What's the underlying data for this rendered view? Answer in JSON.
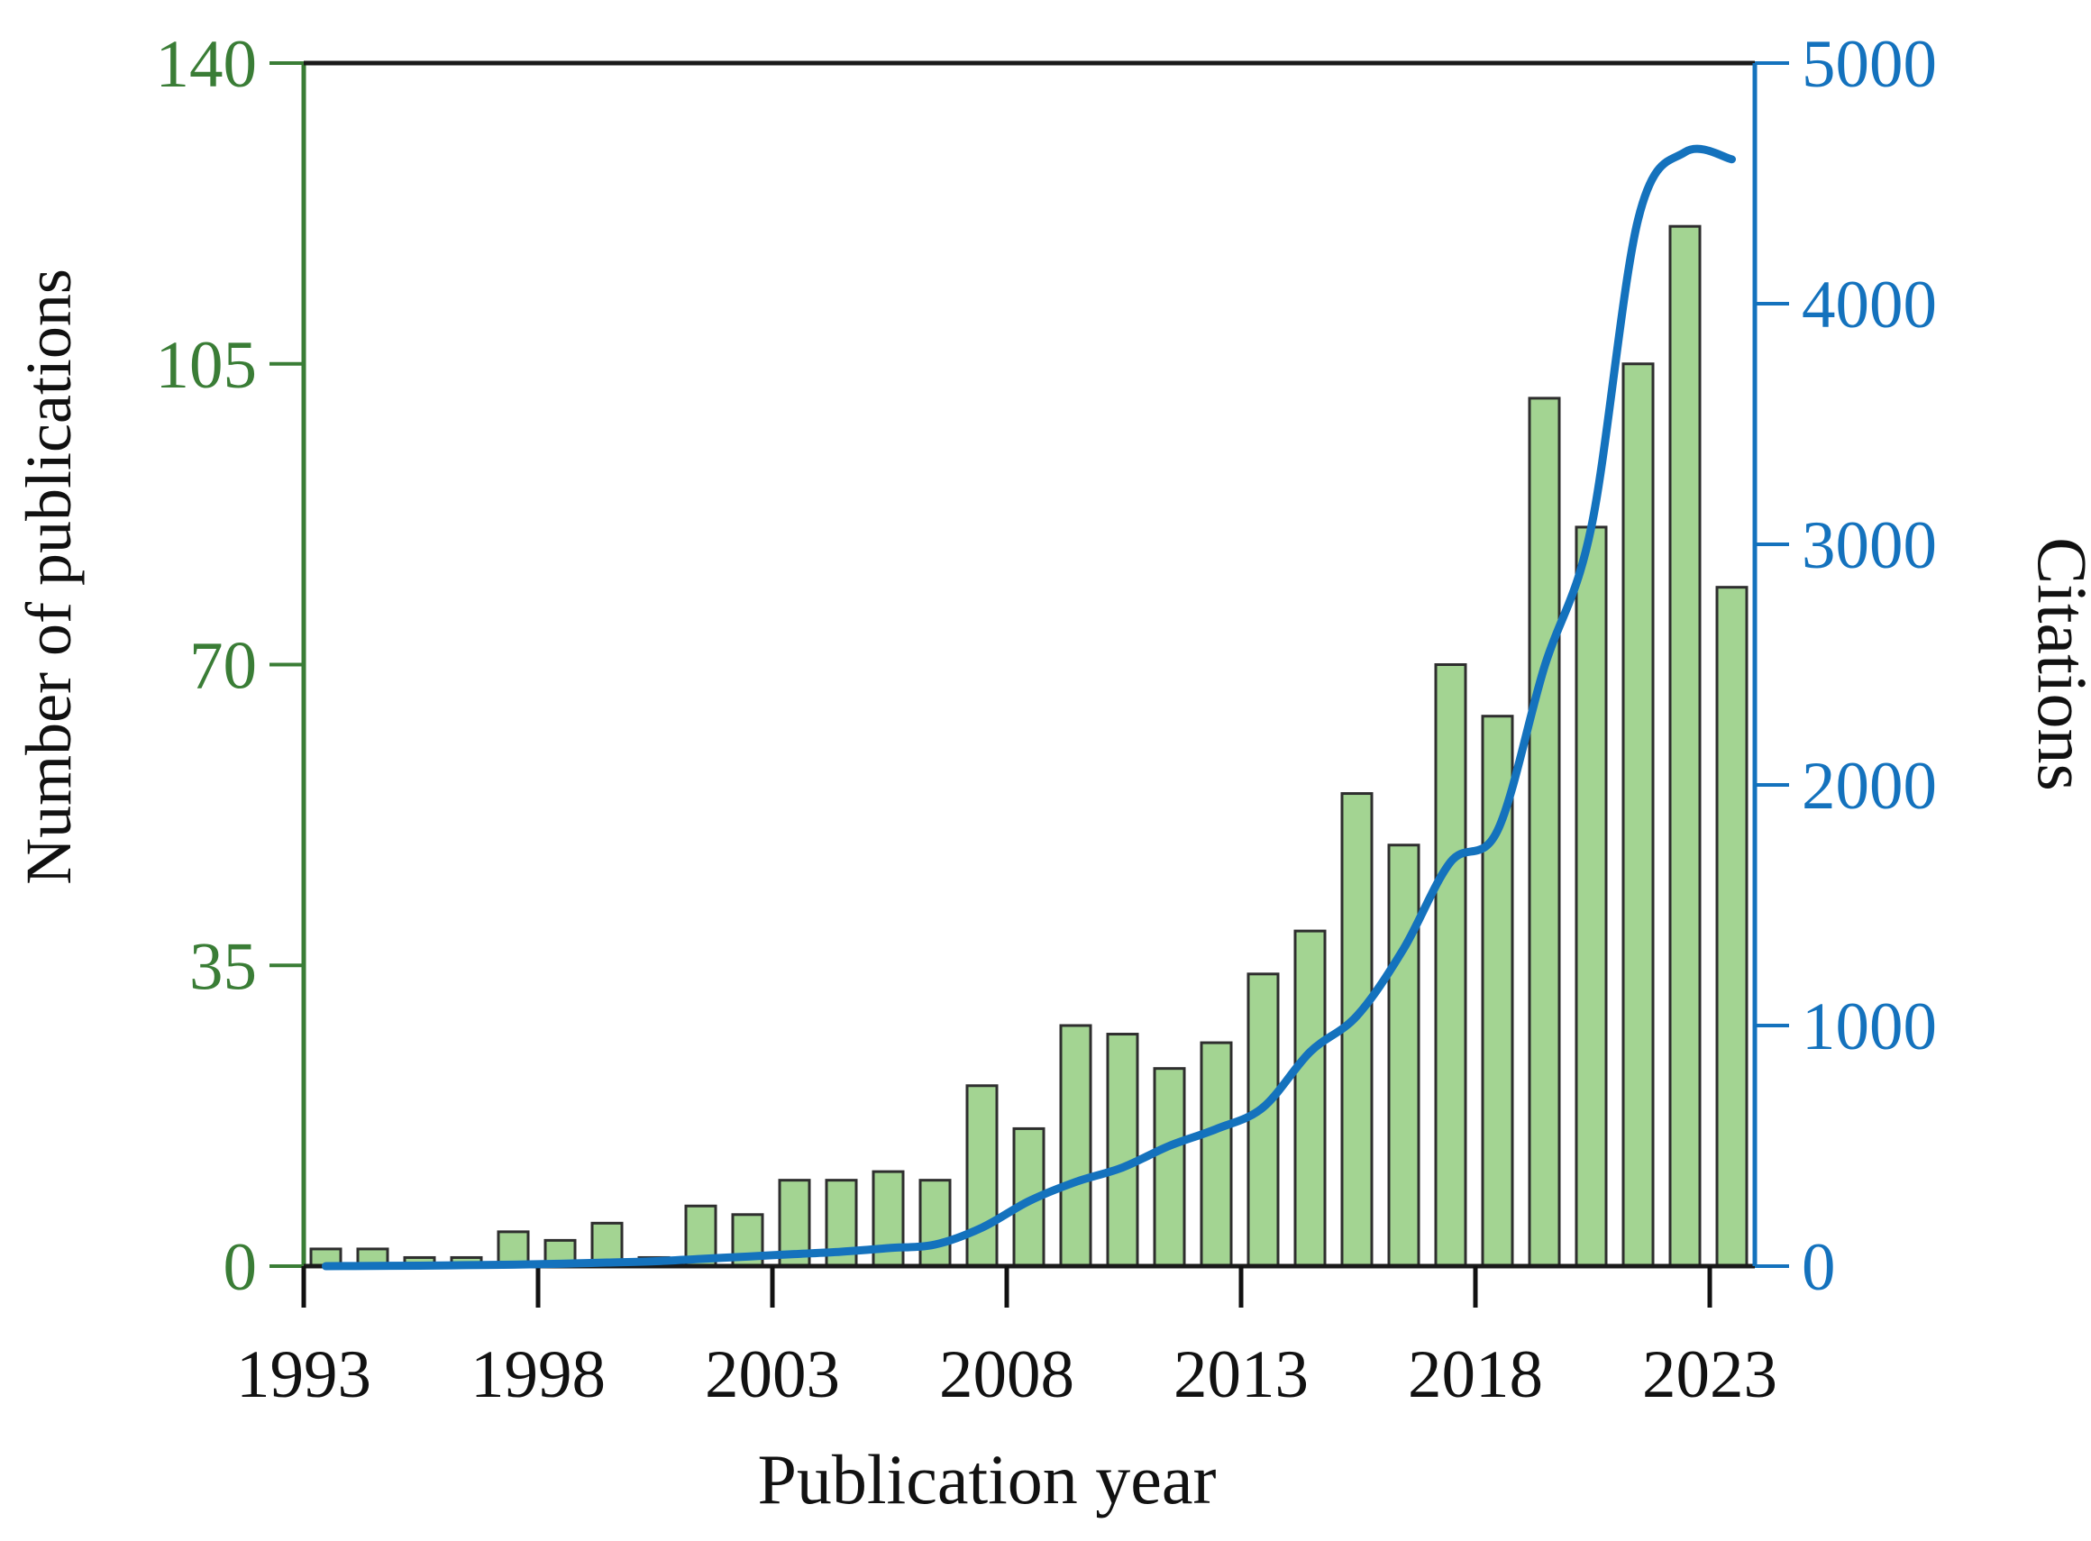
{
  "chart_data": {
    "type": "bar+line",
    "title": "",
    "categories": [
      1993,
      1994,
      1995,
      1996,
      1997,
      1998,
      1999,
      2000,
      2001,
      2002,
      2003,
      2004,
      2005,
      2006,
      2007,
      2008,
      2009,
      2010,
      2011,
      2012,
      2013,
      2014,
      2015,
      2016,
      2017,
      2018,
      2019,
      2020,
      2021,
      2022,
      2023
    ],
    "series": [
      {
        "name": "Number of publications",
        "type": "bar",
        "axis": "left",
        "color": "#a3d492",
        "stroke": "#2e2e2e",
        "values": [
          2,
          2,
          1,
          1,
          4,
          3,
          5,
          1,
          7,
          6,
          10,
          10,
          11,
          10,
          21,
          16,
          28,
          27,
          23,
          26,
          34,
          39,
          55,
          49,
          70,
          64,
          101,
          86,
          105,
          121,
          79
        ]
      },
      {
        "name": "Citations",
        "type": "line",
        "axis": "right",
        "color": "#1472bd",
        "values": [
          0,
          1,
          2,
          4,
          6,
          10,
          15,
          20,
          30,
          40,
          50,
          60,
          75,
          90,
          160,
          270,
          350,
          410,
          500,
          570,
          660,
          890,
          1040,
          1320,
          1680,
          1810,
          2490,
          3070,
          4350,
          4630,
          4600
        ]
      }
    ],
    "x_axis": {
      "label": "Publication year",
      "tick_labels": [
        1993,
        1998,
        2003,
        2008,
        2013,
        2018,
        2023
      ],
      "color": "#111111"
    },
    "left_axis": {
      "label": "Number of publications",
      "ticks": [
        0,
        35,
        70,
        105,
        140
      ],
      "range": [
        0,
        140
      ],
      "color": "#3a7d36"
    },
    "right_axis": {
      "label": "Citations",
      "ticks": [
        0,
        1000,
        2000,
        3000,
        4000,
        5000
      ],
      "range": [
        0,
        5000
      ],
      "color": "#1472bd"
    },
    "grid": false,
    "legend": "none"
  }
}
